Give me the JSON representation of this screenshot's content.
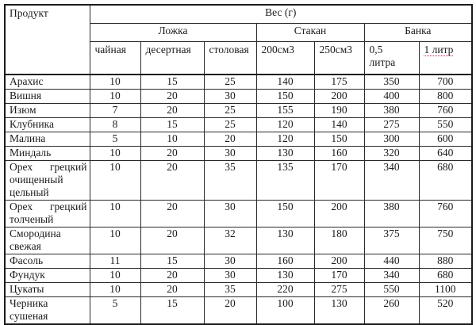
{
  "table": {
    "corner_label": "Продукт",
    "weight_label": "Вес (г)",
    "groups": [
      {
        "label": "Ложка",
        "span": 3
      },
      {
        "label": "Стакан",
        "span": 2
      },
      {
        "label": "Банка",
        "span": 2
      }
    ],
    "subheaders": [
      "чайная",
      "десертная",
      "столовая",
      "200см3",
      "250см3",
      "0,5\nлитра",
      "1 литр"
    ],
    "rows": [
      {
        "product": "Арахис",
        "values": [
          10,
          15,
          25,
          140,
          175,
          350,
          700
        ]
      },
      {
        "product": "Вишня",
        "values": [
          10,
          20,
          30,
          150,
          200,
          400,
          800
        ]
      },
      {
        "product": "Изюм",
        "values": [
          7,
          20,
          25,
          155,
          190,
          380,
          760
        ]
      },
      {
        "product": "Клубника",
        "values": [
          8,
          15,
          25,
          120,
          140,
          275,
          550
        ]
      },
      {
        "product": "Малина",
        "values": [
          5,
          10,
          20,
          120,
          150,
          300,
          600
        ]
      },
      {
        "product": "Миндаль",
        "values": [
          10,
          20,
          30,
          130,
          160,
          320,
          640
        ]
      },
      {
        "product": "Орех грецкий очищенный цельный",
        "values": [
          10,
          20,
          35,
          135,
          170,
          340,
          680
        ]
      },
      {
        "product": "Орех грецкий толченый",
        "values": [
          10,
          20,
          30,
          150,
          200,
          380,
          760
        ]
      },
      {
        "product": "Смородина свежая",
        "values": [
          10,
          20,
          32,
          130,
          180,
          375,
          750
        ]
      },
      {
        "product": "Фасоль",
        "values": [
          11,
          15,
          30,
          160,
          200,
          440,
          880
        ]
      },
      {
        "product": "Фундук",
        "values": [
          10,
          20,
          30,
          130,
          170,
          340,
          680
        ]
      },
      {
        "product": "Цукаты",
        "values": [
          10,
          20,
          35,
          220,
          275,
          550,
          1100
        ]
      },
      {
        "product": "Черника сушеная",
        "values": [
          5,
          15,
          20,
          100,
          130,
          260,
          520
        ]
      }
    ],
    "spellcheck_underline_color": "#c2185b"
  }
}
